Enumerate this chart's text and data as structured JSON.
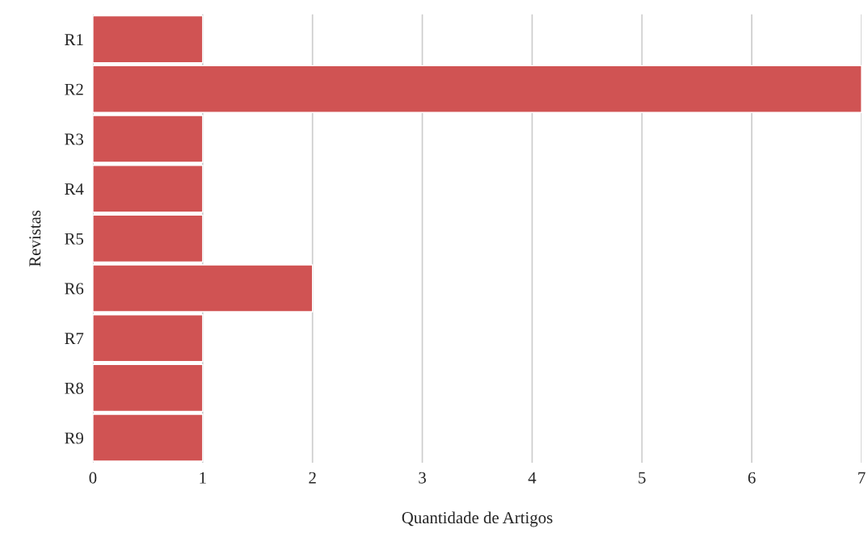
{
  "chart_data": {
    "type": "bar",
    "orientation": "horizontal",
    "xlabel": "Quantidade de Artigos",
    "ylabel": "Revistas",
    "categories": [
      "R1",
      "R2",
      "R3",
      "R4",
      "R5",
      "R6",
      "R7",
      "R8",
      "R9"
    ],
    "values": [
      1,
      7,
      1,
      1,
      1,
      2,
      1,
      1,
      1
    ],
    "color": "#d05353",
    "xlim": [
      0,
      7
    ],
    "xticks": [
      0,
      1,
      2,
      3,
      4,
      5,
      6,
      7
    ],
    "grid": "x"
  }
}
